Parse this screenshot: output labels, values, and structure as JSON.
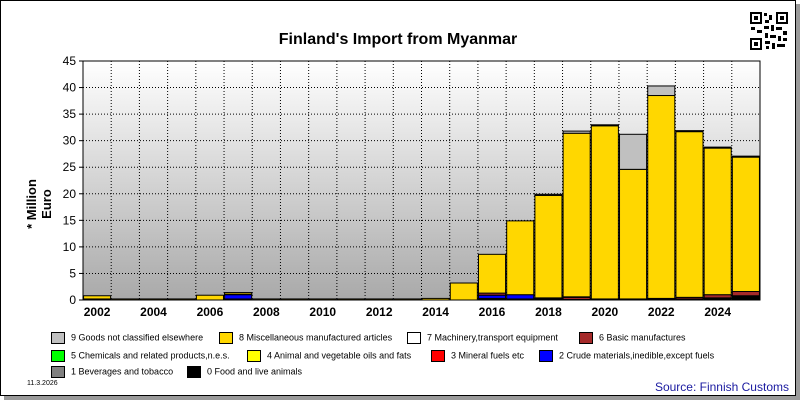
{
  "chart_data": {
    "type": "bar",
    "stacked": true,
    "title": "Finland's Import from Myanmar",
    "ylabel": "* Million Euro",
    "xlabel": "",
    "ylim": [
      0,
      45
    ],
    "yticks": [
      0,
      5,
      10,
      15,
      20,
      25,
      30,
      35,
      40,
      45
    ],
    "xtick_labels": [
      "2002",
      "2004",
      "2006",
      "2008",
      "2010",
      "2012",
      "2014",
      "2016",
      "2018",
      "2020",
      "2022",
      "2024"
    ],
    "grid": true,
    "legend_position": "bottom",
    "categories": [
      "2002",
      "2003",
      "2004",
      "2005",
      "2006",
      "2007",
      "2008",
      "2009",
      "2010",
      "2011",
      "2012",
      "2013",
      "2014",
      "2015",
      "2016",
      "2017",
      "2018",
      "2019",
      "2020",
      "2021",
      "2022",
      "2023",
      "2024",
      "2025"
    ],
    "series": [
      {
        "name": "0 Food and live animals",
        "color": "#000000",
        "values": [
          0,
          0,
          0,
          0,
          0,
          0.2,
          0,
          0,
          0,
          0,
          0,
          0,
          0,
          0,
          0.3,
          0.2,
          0.1,
          0.1,
          0.1,
          0.1,
          0.1,
          0.2,
          0.4,
          0.8
        ]
      },
      {
        "name": "1 Beverages and tobacco",
        "color": "#808080",
        "values": [
          0,
          0,
          0,
          0,
          0,
          0,
          0,
          0,
          0,
          0,
          0,
          0,
          0,
          0,
          0,
          0,
          0,
          0,
          0,
          0,
          0,
          0,
          0,
          0
        ]
      },
      {
        "name": "2 Crude materials,inedible,except fuels",
        "color": "#0000ff",
        "values": [
          0,
          0,
          0,
          0,
          0,
          0.8,
          0,
          0,
          0,
          0,
          0,
          0,
          0,
          0,
          0.6,
          0.8,
          0,
          0,
          0,
          0,
          0,
          0,
          0,
          0
        ]
      },
      {
        "name": "3 Mineral fuels etc",
        "color": "#ff0000",
        "values": [
          0,
          0,
          0,
          0,
          0,
          0,
          0,
          0,
          0,
          0,
          0,
          0,
          0,
          0,
          0,
          0,
          0,
          0,
          0,
          0,
          0,
          0,
          0,
          0
        ]
      },
      {
        "name": "4 Animal and vegetable oils and fats",
        "color": "#ffff00",
        "values": [
          0,
          0,
          0,
          0,
          0,
          0,
          0,
          0,
          0,
          0,
          0,
          0,
          0,
          0,
          0,
          0,
          0,
          0,
          0,
          0,
          0,
          0,
          0,
          0
        ]
      },
      {
        "name": "5 Chemicals and related products,n.e.s.",
        "color": "#00ff00",
        "values": [
          0,
          0,
          0,
          0,
          0,
          0,
          0,
          0,
          0,
          0,
          0,
          0,
          0,
          0,
          0,
          0,
          0,
          0,
          0,
          0,
          0,
          0,
          0,
          0
        ]
      },
      {
        "name": "6 Basic manufactures",
        "color": "#a52a2a",
        "values": [
          0.2,
          0,
          0,
          0,
          0,
          0.1,
          0,
          0,
          0,
          0,
          0,
          0,
          0,
          0,
          0.4,
          0,
          0.2,
          0.4,
          0.1,
          0.1,
          0.2,
          0.3,
          0.6,
          0.8
        ]
      },
      {
        "name": "7 Machinery,transport equipment",
        "color": "#ffffff",
        "values": [
          0,
          0,
          0,
          0,
          0,
          0,
          0,
          0,
          0,
          0,
          0,
          0,
          0,
          0,
          0,
          0,
          0.1,
          0.1,
          0,
          0,
          0,
          0,
          0,
          0
        ]
      },
      {
        "name": "8 Miscellaneous manufactured articles",
        "color": "#ffd700",
        "values": [
          0.6,
          0.2,
          0.2,
          0.2,
          0.9,
          0.3,
          0.2,
          0.2,
          0.2,
          0.2,
          0.2,
          0.2,
          0.3,
          3.2,
          7.3,
          13.9,
          19.3,
          30.8,
          32.6,
          24.4,
          38.2,
          31.2,
          27.6,
          25.3
        ]
      },
      {
        "name": "9 Goods not classified elsewhere",
        "color": "#c0c0c0",
        "values": [
          0,
          0,
          0,
          0,
          0,
          0,
          0,
          0,
          0,
          0,
          0,
          0,
          0,
          0,
          0,
          0,
          0.2,
          0.4,
          0.1,
          6.6,
          1.8,
          0.1,
          0.1,
          0.1
        ]
      }
    ]
  },
  "legend": [
    {
      "label": "9 Goods not classified elsewhere",
      "color": "#c0c0c0"
    },
    {
      "label": "8 Miscellaneous manufactured articles",
      "color": "#ffd700"
    },
    {
      "label": "7 Machinery,transport equipment",
      "color": "#ffffff"
    },
    {
      "label": "6 Basic manufactures",
      "color": "#a52a2a"
    },
    {
      "label": "5 Chemicals and related products,n.e.s.",
      "color": "#00ff00"
    },
    {
      "label": "4 Animal and vegetable oils and fats",
      "color": "#ffff00"
    },
    {
      "label": "3 Mineral fuels etc",
      "color": "#ff0000"
    },
    {
      "label": "2 Crude materials,inedible,except fuels",
      "color": "#0000ff"
    },
    {
      "label": "1 Beverages and tobacco",
      "color": "#808080"
    },
    {
      "label": "0 Food and live animals",
      "color": "#000000"
    }
  ],
  "footer": {
    "date": "11.3.2026",
    "source": "Source: Finnish Customs"
  },
  "qr_icon": "qr-code-icon"
}
